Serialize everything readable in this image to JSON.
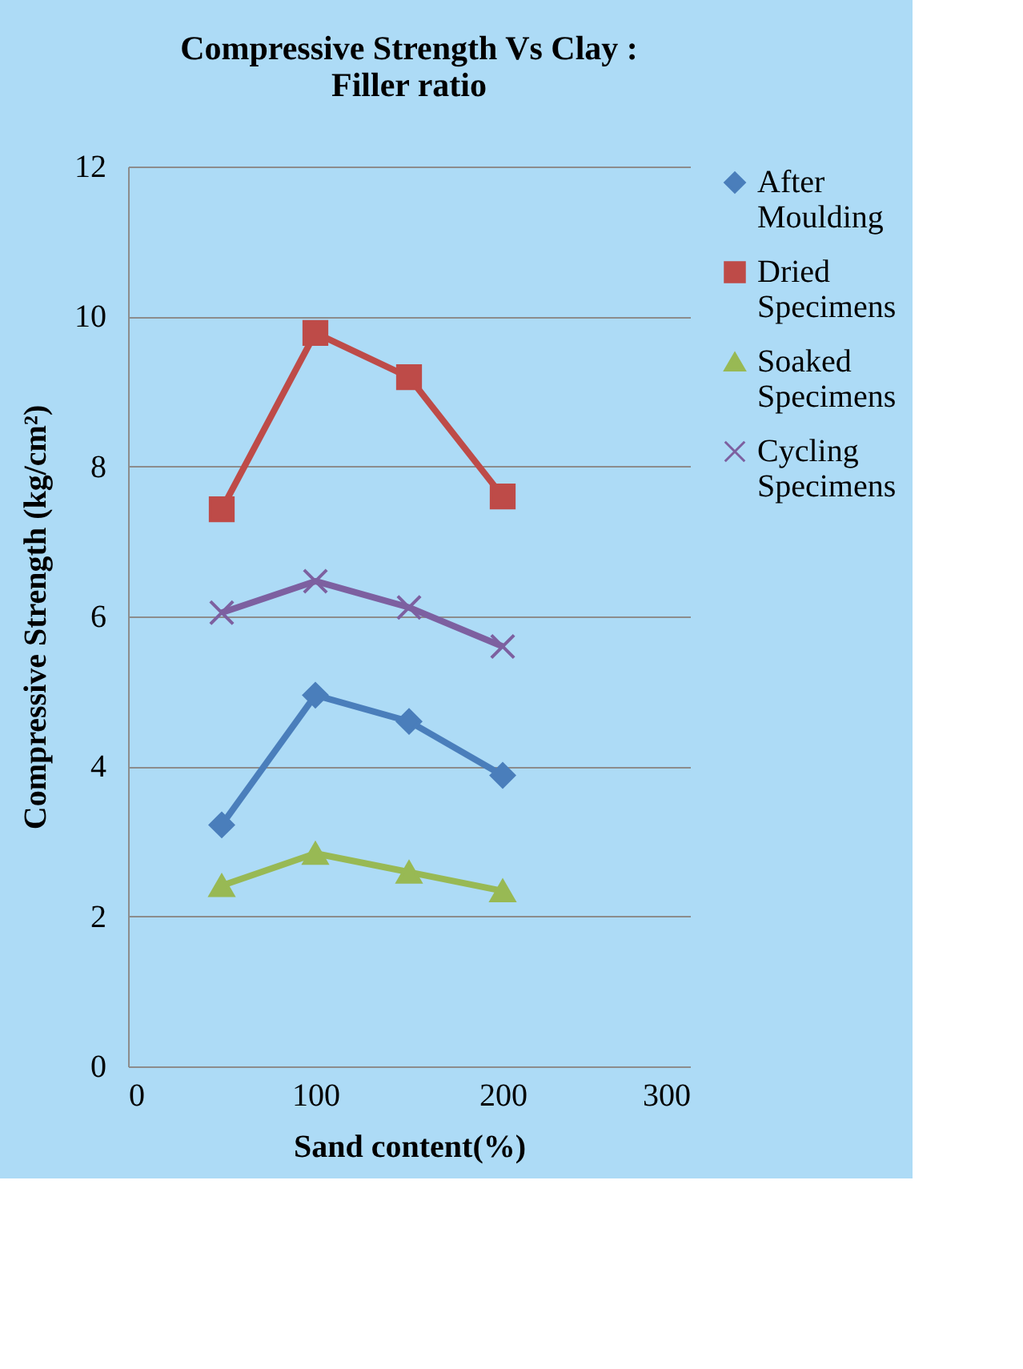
{
  "chart_data": {
    "type": "line",
    "title": "Compressive Strength Vs Clay : Filler ratio",
    "xlabel": "Sand content(%)",
    "ylabel": "Compressive Strength (kg/cm²)",
    "x": [
      50,
      100,
      150,
      200
    ],
    "xlim": [
      0,
      300
    ],
    "xticks": [
      0,
      100,
      200,
      300
    ],
    "ylim": [
      0,
      12
    ],
    "yticks": [
      0,
      2,
      4,
      6,
      8,
      10,
      12
    ],
    "grid": "y",
    "legend": "right",
    "series": [
      {
        "name": "After Moulding",
        "color": "#4a7ebb",
        "marker": "diamond",
        "values": [
          3.22,
          4.95,
          4.6,
          3.88
        ]
      },
      {
        "name": "Dried Specimens",
        "color": "#be4b48",
        "marker": "square",
        "values": [
          7.43,
          9.78,
          9.19,
          7.6
        ]
      },
      {
        "name": "Soaked Specimens",
        "color": "#98b954",
        "marker": "triangle",
        "values": [
          2.41,
          2.84,
          2.59,
          2.34
        ]
      },
      {
        "name": "Cycling Specimens",
        "color": "#7d60a0",
        "marker": "cross",
        "values": [
          6.05,
          6.47,
          6.12,
          5.6
        ]
      }
    ]
  }
}
